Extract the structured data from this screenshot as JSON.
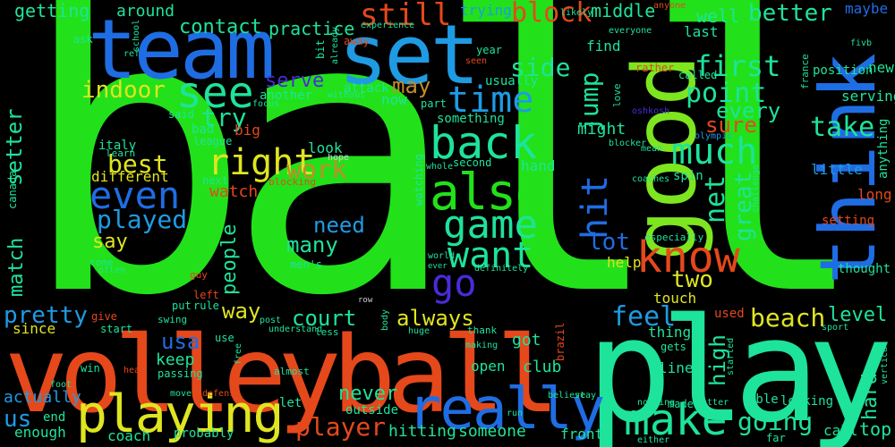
{
  "palette": {
    "green": "#22e11a",
    "teal": "#1ee39a",
    "blue": "#1f6de3",
    "skyblue": "#1e9be3",
    "orange": "#e5481b",
    "yellow": "#dfe520",
    "lime": "#7ee61f",
    "cyan": "#1fd3d9",
    "purple": "#4a2bd9",
    "red": "#e03a2a",
    "brown": "#c58a2a",
    "white": "#cfcfcf"
  },
  "words": {
    "ball": "ball",
    "volleyball": "volleyball",
    "play": "play",
    "team": "team",
    "set": "set",
    "good": "good",
    "think": "think",
    "playing": "playing",
    "really": "really",
    "make": "make",
    "also": "also",
    "game": "game",
    "back": "back",
    "know": "know",
    "want": "want",
    "see": "see",
    "even": "even",
    "right": "right",
    "much": "much",
    "time": "time",
    "still": "still",
    "block": "block",
    "first": "first",
    "point": "point",
    "every": "every",
    "better": "better",
    "take": "take",
    "hit": "hit",
    "jump": "jump",
    "go": "go",
    "lot": "lot",
    "net": "net",
    "great": "great",
    "two": "two",
    "might": "might",
    "sure": "sure",
    "played": "played",
    "best": "best",
    "work": "work",
    "try": "try",
    "indoor": "indoor",
    "serve": "serve",
    "may": "may",
    "side": "side",
    "setter": "setter",
    "contact": "contact",
    "practice": "practice",
    "getting": "getting",
    "around": "around",
    "trying": "trying",
    "middle": "middle",
    "well": "well",
    "maybe": "maybe",
    "new": "new",
    "feel": "feel",
    "beach": "beach",
    "level": "level",
    "court": "court",
    "always": "always",
    "player": "player",
    "going": "going",
    "hard": "hard",
    "top": "top",
    "high": "high",
    "usa": "usa",
    "way": "way",
    "pretty": "pretty",
    "us": "us",
    "need": "need",
    "many": "many",
    "people": "people",
    "say": "say",
    "match": "match",
    "different": "different",
    "watch": "watch",
    "never": "never",
    "got": "got",
    "someone": "someone",
    "hitting": "hitting",
    "coach": "coach",
    "actually": "actually",
    "enough": "enough",
    "since": "since",
    "keep": "keep",
    "end": "end",
    "outside": "outside",
    "club": "club",
    "open": "open",
    "front": "front",
    "call": "call",
    "line": "line",
    "thing": "thing",
    "used": "used",
    "touch": "touch",
    "help": "help",
    "little": "little",
    "long": "long",
    "setting": "setting",
    "thought": "thought",
    "serving": "serving",
    "position": "position",
    "anything": "anything",
    "last": "last",
    "find": "find",
    "usually": "usually",
    "attack": "attack",
    "now": "now",
    "part": "part",
    "something": "something",
    "second": "second",
    "hand": "hand",
    "look": "look",
    "another": "another",
    "italy": "italy",
    "canada": "canada",
    "bad": "bad",
    "big": "big",
    "league": "league",
    "said": "said",
    "next": "next",
    "learn": "learn",
    "blocking": "blocking",
    "hope": "hope",
    "watching": "watching",
    "whole": "whole",
    "spin": "spin",
    "coaches": "coaches",
    "blocker": "blocker",
    "mean": "mean",
    "olympic": "olympic",
    "oshkosh": "oshkosh",
    "love": "love",
    "called": "called",
    "rather": "rather",
    "france": "france",
    "fivb": "fivb",
    "everyone": "everyone",
    "likely": "likely",
    "anyone": "anyone",
    "experience": "experience",
    "already": "already",
    "bit": "bit",
    "school": "school",
    "ref": "ref",
    "ask": "ask",
    "away": "away",
    "year": "year",
    "seen": "seen",
    "without": "without",
    "focus": "focus",
    "challenge": "challenge",
    "especially": "especially",
    "come": "come",
    "often": "often",
    "men's": "men's",
    "guy": "guy",
    "put": "put",
    "rule": "rule",
    "left": "left",
    "give": "give",
    "swing": "swing",
    "start": "start",
    "use": "use",
    "post": "post",
    "understand": "understand",
    "less": "less",
    "row": "row",
    "body": "body",
    "huge": "huge",
    "making": "making",
    "thank": "thank",
    "brazil": "brazil",
    "believe": "believe",
    "stay": "stay",
    "made": "made",
    "matter": "matter",
    "nothing": "nothing",
    "either": "either",
    "far": "far",
    "looking": "looking",
    "able": "able",
    "short": "short",
    "gets": "gets",
    "started": "started",
    "sport": "sport",
    "vertical": "vertical",
    "win": "win",
    "head": "head",
    "passing": "passing",
    "move": "move",
    "defense": "defense",
    "foot": "foot",
    "free": "free",
    "almost": "almost",
    "let": "let",
    "probably": "probably",
    "run": "run",
    "world": "world",
    "ever": "ever",
    "definitely": "definitely"
  }
}
